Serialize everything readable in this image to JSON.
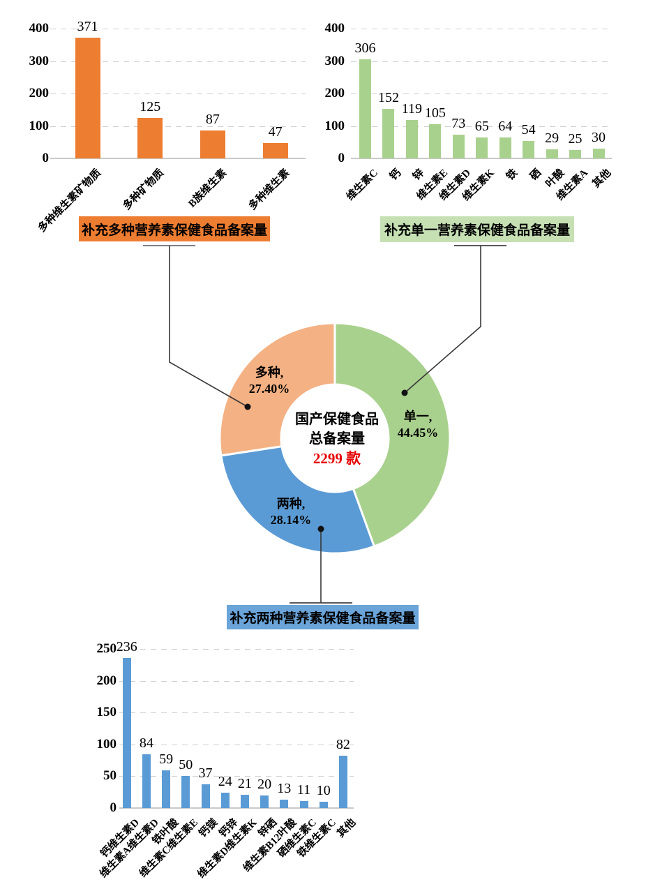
{
  "page": {
    "background": "#FFFFFF"
  },
  "chart_data": [
    {
      "id": "multi",
      "type": "bar",
      "title": "补充多种营养素保健食品备案量",
      "categories": [
        "多种维生素矿物质",
        "多种矿物质",
        "B族维生素",
        "多种维生素"
      ],
      "values": [
        371,
        125,
        87,
        47
      ],
      "ylim": [
        0,
        400
      ],
      "yticks": [
        0,
        100,
        200,
        300,
        400
      ],
      "bar_color": "#ED7D31",
      "badge_bg": "#ED7D31",
      "grid": "horizontal-dashed",
      "legend": "none"
    },
    {
      "id": "single",
      "type": "bar",
      "title": "补充单一营养素保健食品备案量",
      "categories": [
        "维生素C",
        "钙",
        "锌",
        "维生素E",
        "维生素D",
        "维生素K",
        "铁",
        "硒",
        "叶酸",
        "维生素A",
        "其他"
      ],
      "values": [
        306,
        152,
        119,
        105,
        73,
        65,
        64,
        54,
        29,
        25,
        30
      ],
      "ylim": [
        0,
        400
      ],
      "yticks": [
        0,
        100,
        200,
        300,
        400
      ],
      "bar_color": "#A9D18E",
      "badge_bg": "#C6E0B4",
      "grid": "horizontal-dashed",
      "legend": "none"
    },
    {
      "id": "total-donut",
      "type": "pie",
      "subtype": "donut",
      "center_lines": [
        "国产保健食品",
        "总备案量",
        "2299 款"
      ],
      "total_value": "2299",
      "total_color": "#E60000",
      "segments": [
        {
          "label": "单一,",
          "pct": "44.45%",
          "value": 44.45,
          "color": "#A9D18E"
        },
        {
          "label": "两种,",
          "pct": "28.14%",
          "value": 28.14,
          "color": "#5B9BD5"
        },
        {
          "label": "多种,",
          "pct": "27.40%",
          "value": 27.4,
          "color": "#F4B183"
        }
      ]
    },
    {
      "id": "double",
      "type": "bar",
      "title": "补充两种营养素保健食品备案量",
      "categories": [
        "钙维生素D",
        "维生素A维生素D",
        "铁叶酸",
        "维生素C维生素E",
        "钙镁",
        "钙锌",
        "维生素D维生素K",
        "锌硒",
        "维生素B12叶酸",
        "硒维生素C",
        "铁维生素C",
        "其他"
      ],
      "values": [
        236,
        84,
        59,
        50,
        37,
        24,
        21,
        20,
        13,
        11,
        10,
        82
      ],
      "ylim": [
        0,
        250
      ],
      "yticks": [
        0,
        50,
        100,
        150,
        200,
        250
      ],
      "bar_color": "#5B9BD5",
      "badge_bg": "#6AA4D9",
      "grid": "horizontal-dashed",
      "legend": "none"
    }
  ]
}
